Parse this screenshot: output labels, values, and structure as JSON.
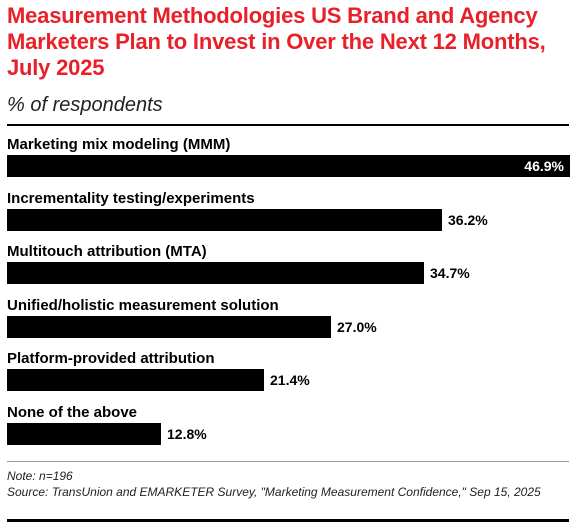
{
  "title": "Measurement Methodologies US Brand and Agency Marketers Plan to Invest in Over the Next 12 Months, July 2025",
  "subtitle": "% of respondents",
  "note": "Note: n=196",
  "source": "Source: TransUnion and EMARKETER Survey, \"Marketing Measurement Confidence,\" Sep 15, 2025",
  "colors": {
    "title": "#e8202a",
    "bar": "#000000"
  },
  "chart_data": {
    "type": "bar",
    "orientation": "horizontal",
    "title": "Measurement Methodologies US Brand and Agency Marketers Plan to Invest in Over the Next 12 Months, July 2025",
    "subtitle": "% of respondents",
    "categories": [
      "Marketing mix modeling (MMM)",
      "Incrementality testing/experiments",
      "Multitouch attribution (MTA)",
      "Unified/holistic measurement solution",
      "Platform-provided attribution",
      "None of the above"
    ],
    "values": [
      46.9,
      36.2,
      34.7,
      27.0,
      21.4,
      12.8
    ],
    "value_labels": [
      "46.9%",
      "36.2%",
      "34.7%",
      "27.0%",
      "21.4%",
      "12.8%"
    ],
    "xlim": [
      0,
      46.9
    ],
    "grid": false,
    "legend": "none"
  }
}
